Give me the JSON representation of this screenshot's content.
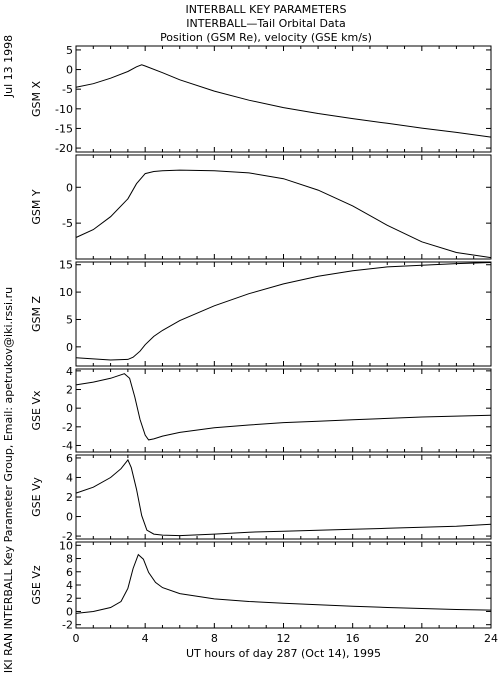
{
  "title_lines": [
    "INTERBALL KEY PARAMETERS",
    "INTERBALL—Tail Orbital Data",
    "Position (GSM Re), velocity (GSE km/s)"
  ],
  "date_label": "Jul 13 1998",
  "credit_label": "IKI RAN INTERBALL Key Parameter Group, Email: apetrukov@iki.rssi.ru",
  "chart_data": [
    {
      "type": "line",
      "ylabel": "GSM X",
      "ylim": [
        -21,
        6
      ],
      "yticks": [
        5,
        0,
        -5,
        -10,
        -15,
        -20
      ],
      "xlim": [
        0,
        24
      ],
      "series": [
        {
          "x": [
            0,
            1,
            2,
            3,
            3.5,
            3.8,
            4,
            5,
            6,
            8,
            10,
            12,
            14,
            16,
            18,
            20,
            22,
            24
          ],
          "values": [
            -4.5,
            -3.6,
            -2.2,
            -0.5,
            0.7,
            1.2,
            0.9,
            -0.8,
            -2.6,
            -5.5,
            -7.8,
            -9.7,
            -11.2,
            -12.5,
            -13.7,
            -14.9,
            -16.0,
            -17.2
          ]
        }
      ]
    },
    {
      "type": "line",
      "ylabel": "GSM Y",
      "ylim": [
        -10,
        4.5
      ],
      "yticks": [
        0,
        -5
      ],
      "xlim": [
        0,
        24
      ],
      "series": [
        {
          "x": [
            0,
            1,
            2,
            3,
            3.5,
            4,
            4.5,
            5,
            6,
            8,
            10,
            12,
            14,
            16,
            18,
            20,
            22,
            24
          ],
          "values": [
            -7,
            -5.9,
            -4.1,
            -1.6,
            0.5,
            1.9,
            2.2,
            2.3,
            2.4,
            2.3,
            2.0,
            1.2,
            -0.4,
            -2.6,
            -5.3,
            -7.6,
            -9.1,
            -9.8
          ]
        }
      ]
    },
    {
      "type": "line",
      "ylabel": "GSM Z",
      "ylim": [
        -3.5,
        15.5
      ],
      "yticks": [
        15,
        10,
        5,
        0
      ],
      "xlim": [
        0,
        24
      ],
      "series": [
        {
          "x": [
            0,
            1,
            2,
            3,
            3.3,
            3.7,
            4,
            4.5,
            5,
            6,
            8,
            10,
            12,
            14,
            16,
            18,
            20,
            22,
            24
          ],
          "values": [
            -2,
            -2.2,
            -2.4,
            -2.3,
            -1.9,
            -0.8,
            0.4,
            1.9,
            3.0,
            4.8,
            7.5,
            9.7,
            11.5,
            12.9,
            13.9,
            14.6,
            14.9,
            15.2,
            15.4
          ]
        }
      ]
    },
    {
      "type": "line",
      "ylabel": "GSE Vx",
      "ylim": [
        -4.7,
        4.2
      ],
      "yticks": [
        4,
        2,
        0,
        -2,
        -4
      ],
      "xlim": [
        0,
        24
      ],
      "series": [
        {
          "x": [
            0,
            1,
            2,
            2.8,
            3.1,
            3.4,
            3.7,
            4.0,
            4.2,
            4.5,
            5,
            6,
            8,
            10,
            12,
            14,
            16,
            18,
            20,
            22,
            24
          ],
          "values": [
            2.5,
            2.8,
            3.2,
            3.7,
            3.2,
            1.2,
            -1.2,
            -2.9,
            -3.4,
            -3.3,
            -3.0,
            -2.6,
            -2.1,
            -1.8,
            -1.55,
            -1.4,
            -1.25,
            -1.1,
            -0.95,
            -0.85,
            -0.75
          ]
        }
      ]
    },
    {
      "type": "line",
      "ylabel": "GSE Vy",
      "ylim": [
        -2.3,
        6.3
      ],
      "yticks": [
        6,
        4,
        2,
        0,
        -2
      ],
      "xlim": [
        0,
        24
      ],
      "series": [
        {
          "x": [
            0,
            1,
            2,
            2.6,
            3.0,
            3.2,
            3.5,
            3.8,
            4.1,
            4.5,
            5,
            6,
            8,
            10,
            12,
            14,
            16,
            18,
            20,
            22,
            24
          ],
          "values": [
            2.4,
            3.0,
            4.0,
            4.9,
            5.8,
            5.0,
            2.8,
            0.1,
            -1.4,
            -1.8,
            -1.9,
            -1.95,
            -1.8,
            -1.6,
            -1.5,
            -1.4,
            -1.3,
            -1.2,
            -1.1,
            -1.0,
            -0.8
          ]
        }
      ]
    },
    {
      "type": "line",
      "ylabel": "GSE Vz",
      "ylim": [
        -2.5,
        10.5
      ],
      "yticks": [
        10,
        8,
        6,
        4,
        2,
        0,
        -2
      ],
      "xlim": [
        0,
        24
      ],
      "xticks": [
        0,
        4,
        8,
        12,
        16,
        20,
        24
      ],
      "xlabel": "UT hours of day 287 (Oct 14), 1995",
      "series": [
        {
          "x": [
            0,
            1,
            2,
            2.6,
            3.0,
            3.3,
            3.6,
            3.9,
            4.2,
            4.6,
            5,
            6,
            8,
            10,
            12,
            14,
            16,
            18,
            20,
            22,
            24
          ],
          "values": [
            -0.3,
            0,
            0.6,
            1.5,
            3.5,
            6.5,
            8.6,
            7.9,
            5.9,
            4.4,
            3.6,
            2.7,
            1.9,
            1.5,
            1.25,
            1.0,
            0.8,
            0.6,
            0.45,
            0.3,
            0.2
          ]
        }
      ]
    }
  ]
}
